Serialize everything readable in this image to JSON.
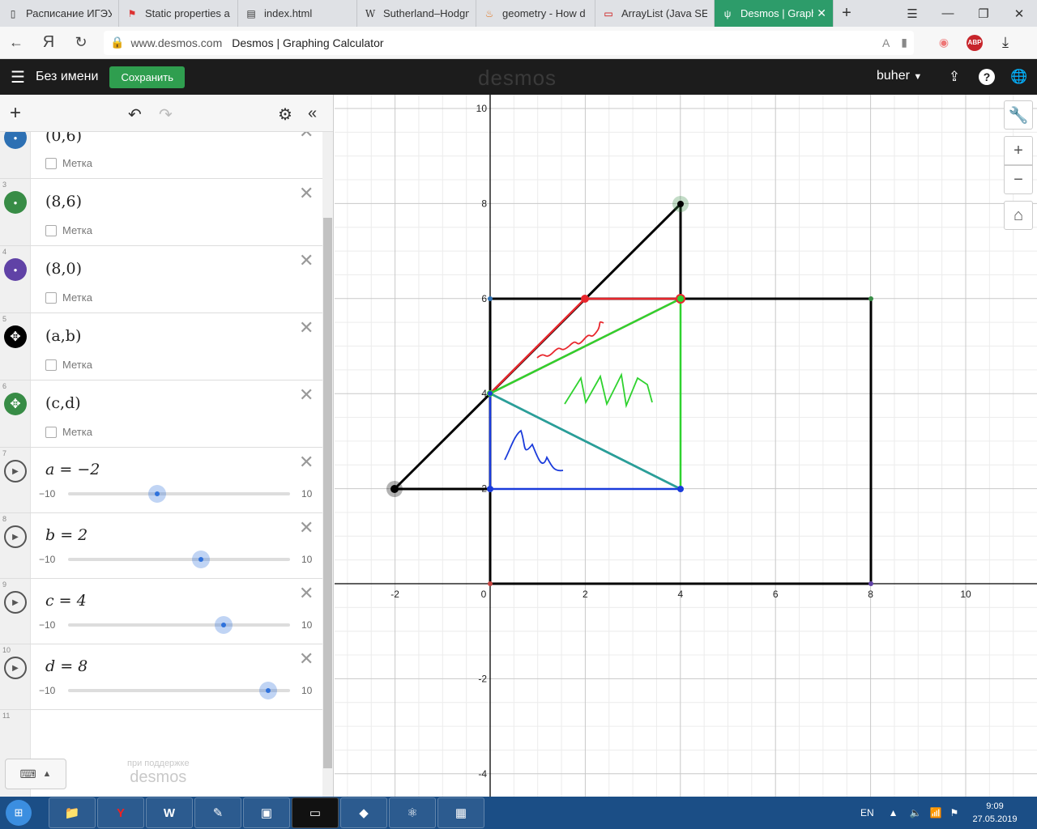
{
  "browser": {
    "tabs": [
      {
        "icon": "page-icon",
        "label": "Расписание ИГЭУ"
      },
      {
        "icon": "static-icon",
        "label": "Static properties a"
      },
      {
        "icon": "html-file-icon",
        "label": "index.html"
      },
      {
        "icon": "wikipedia-icon",
        "label": "Sutherland–Hodgm"
      },
      {
        "icon": "stackexchange-icon",
        "label": "geometry - How d"
      },
      {
        "icon": "oracle-icon",
        "label": "ArrayList (Java SE"
      },
      {
        "icon": "desmos-icon",
        "label": "Desmos | Graph"
      }
    ],
    "url_domain": "www.desmos.com",
    "page_title": "Desmos | Graphing Calculator",
    "yandex_glyph": "Я",
    "abp_label": "ABP"
  },
  "header": {
    "doc_name": "Без имени",
    "save_label": "Сохранить",
    "logo": "desmos",
    "user": "buher"
  },
  "expressions": [
    {
      "num": "",
      "kind": "point",
      "color": "#2d70b3",
      "text": "(0,6)",
      "label_text": "Метка"
    },
    {
      "num": "3",
      "kind": "point",
      "color": "#388c46",
      "text": "(8,6)",
      "label_text": "Метка"
    },
    {
      "num": "4",
      "kind": "point",
      "color": "#6042a6",
      "text": "(8,0)",
      "label_text": "Метка"
    },
    {
      "num": "5",
      "kind": "movable",
      "color": "#000000",
      "text": "(a,b)",
      "label_text": "Метка"
    },
    {
      "num": "6",
      "kind": "movable",
      "color": "#388c46",
      "text": "(c,d)",
      "label_text": "Метка"
    },
    {
      "num": "7",
      "kind": "slider",
      "text": "a = −2",
      "min": "−10",
      "max": "10",
      "value": -2
    },
    {
      "num": "8",
      "kind": "slider",
      "text": "b = 2",
      "min": "−10",
      "max": "10",
      "value": 2
    },
    {
      "num": "9",
      "kind": "slider",
      "text": "c = 4",
      "min": "−10",
      "max": "10",
      "value": 4
    },
    {
      "num": "10",
      "kind": "slider",
      "text": "d = 8",
      "min": "−10",
      "max": "10",
      "value": 8
    },
    {
      "num": "11",
      "kind": "empty"
    }
  ],
  "footer": {
    "powered_line1": "при поддержке",
    "powered_line2": "desmos"
  },
  "graph": {
    "x_ticks": [
      "-2",
      "0",
      "2",
      "4",
      "6",
      "8",
      "10"
    ],
    "y_ticks": [
      "10",
      "8",
      "6",
      "4",
      "2",
      "-2",
      "-4"
    ],
    "colors": {
      "black": "#000000",
      "red": "#e8262c",
      "green": "#2fd22f",
      "blue": "#1a3bdb",
      "teal": "#2aa197"
    }
  },
  "taskbar": {
    "lang": "EN",
    "time": "9:09",
    "date": "27.05.2019"
  }
}
